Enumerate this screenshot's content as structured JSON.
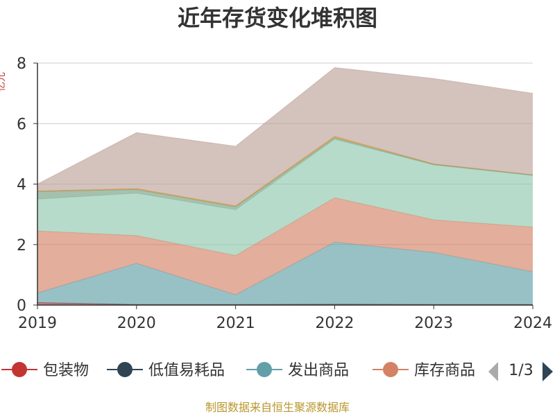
{
  "chart_data": {
    "type": "area",
    "stacked": true,
    "title": "近年存货变化堆积图",
    "ylabel": "亿元",
    "x": [
      "2019",
      "2020",
      "2021",
      "2022",
      "2023",
      "2024"
    ],
    "ylim": [
      0,
      8
    ],
    "yticks": [
      "0",
      "2",
      "4",
      "6",
      "8"
    ],
    "grid": true,
    "series": [
      {
        "name": "包装物",
        "color": "#c23531",
        "values": [
          0.08,
          0.02,
          0.02,
          0.03,
          0.02,
          0.02
        ]
      },
      {
        "name": "低值易耗品",
        "color": "#2f4554",
        "values": [
          0.0,
          0.0,
          0.0,
          0.0,
          0.0,
          0.0
        ]
      },
      {
        "name": "发出商品",
        "color": "#61a0a8",
        "values": [
          0.32,
          1.36,
          0.32,
          2.05,
          1.72,
          1.08
        ]
      },
      {
        "name": "库存商品",
        "color": "#d48265",
        "values": [
          2.05,
          0.92,
          1.3,
          1.47,
          1.08,
          1.48
        ]
      },
      {
        "name": "",
        "color": "#91c7ae",
        "values": [
          1.05,
          1.4,
          1.51,
          1.93,
          1.81,
          1.7
        ]
      },
      {
        "name": "",
        "color": "#749f83",
        "values": [
          0.25,
          0.12,
          0.1,
          0.05,
          0.02,
          0.02
        ]
      },
      {
        "name": "",
        "color": "#ca8622",
        "values": [
          0.02,
          0.03,
          0.03,
          0.05,
          0.02,
          0.01
        ]
      },
      {
        "name": "",
        "color": "#bda29a",
        "values": [
          0.23,
          1.85,
          1.97,
          2.27,
          2.82,
          2.69
        ]
      }
    ],
    "legend_position": "bottom",
    "legend_page": "1/3"
  },
  "footer": {
    "source": "制图数据来自恒生聚源数据库"
  }
}
